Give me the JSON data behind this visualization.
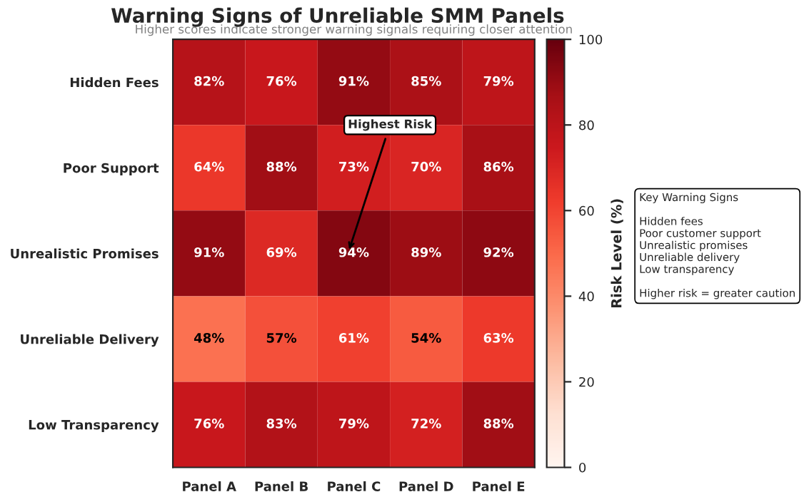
{
  "chart_data": {
    "type": "heatmap",
    "title": "Warning Signs of Unreliable SMM Panels",
    "subtitle": "Higher scores indicate stronger warning signals requiring closer attention",
    "categories": [
      "Panel A",
      "Panel B",
      "Panel C",
      "Panel D",
      "Panel E"
    ],
    "y_categories": [
      "Hidden Fees",
      "Poor Support",
      "Unrealistic Promises",
      "Unreliable Delivery",
      "Low Transparency"
    ],
    "cells": [
      [
        82,
        76,
        91,
        85,
        79
      ],
      [
        64,
        88,
        73,
        70,
        86
      ],
      [
        91,
        69,
        94,
        89,
        92
      ],
      [
        48,
        57,
        61,
        54,
        63
      ],
      [
        76,
        83,
        79,
        72,
        88
      ]
    ],
    "cell_labels": [
      [
        "82%",
        "76%",
        "91%",
        "85%",
        "79%"
      ],
      [
        "64%",
        "88%",
        "73%",
        "70%",
        "86%"
      ],
      [
        "91%",
        "69%",
        "94%",
        "89%",
        "92%"
      ],
      [
        "48%",
        "57%",
        "61%",
        "54%",
        "63%"
      ],
      [
        "76%",
        "83%",
        "79%",
        "72%",
        "88%"
      ]
    ],
    "clim": [
      0,
      100
    ],
    "cticks": [
      0,
      20,
      40,
      60,
      80,
      100
    ],
    "clabel": "Risk Level (%)",
    "annotations": [
      "Highest Risk",
      "Key Warning Signs\n\nHidden fees\nPoor customer support\nUnrealistic promises\nUnreliable delivery\nLow transparency\n\nHigher risk = greater caution"
    ]
  }
}
